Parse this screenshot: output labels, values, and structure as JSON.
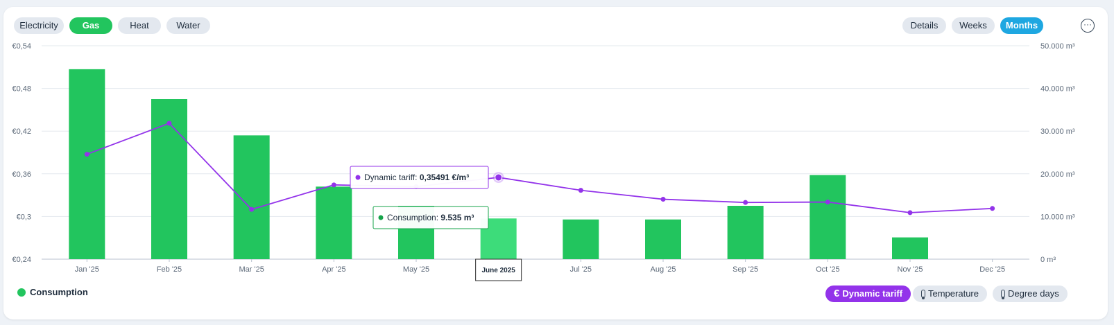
{
  "tabs": {
    "utilities": [
      {
        "label": "Electricity",
        "active": false
      },
      {
        "label": "Gas",
        "active": true
      },
      {
        "label": "Heat",
        "active": false
      },
      {
        "label": "Water",
        "active": false
      }
    ],
    "periods": [
      {
        "label": "Details",
        "active": false
      },
      {
        "label": "Weeks",
        "active": false
      },
      {
        "label": "Months",
        "active": true
      }
    ],
    "more_icon": "ellipsis-icon"
  },
  "legend": {
    "consumption_label": "Consumption"
  },
  "toggles": {
    "dynamic_tariff": {
      "label": "Dynamic tariff",
      "icon": "euro-icon",
      "active": true
    },
    "temperature": {
      "label": "Temperature",
      "icon": "thermometer-icon",
      "active": false
    },
    "degree_days": {
      "label": "Degree days",
      "icon": "thermometer-icon",
      "active": false
    }
  },
  "tooltips": {
    "tariff": {
      "label": "Dynamic tariff",
      "value": "0,35491 €/m³"
    },
    "consumption": {
      "label": "Consumption",
      "value": "9.535 m³"
    },
    "x_label": "June 2025"
  },
  "colors": {
    "consumption": "#22c55e",
    "consumption_hover": "#3ddc7a",
    "tariff": "#9333ea"
  },
  "chart_data": {
    "type": "bar",
    "categories": [
      "Jan '25",
      "Feb '25",
      "Mar '25",
      "Apr '25",
      "May '25",
      "Jun '25",
      "Jul '25",
      "Aug '25",
      "Sep '25",
      "Oct '25",
      "Nov '25",
      "Dec '25"
    ],
    "series": [
      {
        "name": "Consumption",
        "type": "bar",
        "axis": "right",
        "unit": "m³",
        "values": [
          44500,
          37500,
          29000,
          17000,
          12500,
          9535,
          9300,
          9300,
          12500,
          19700,
          5100,
          null
        ]
      },
      {
        "name": "Dynamic tariff",
        "type": "line",
        "axis": "left",
        "unit": "€/m³",
        "values": [
          0.3875,
          0.431,
          0.31,
          0.3444,
          0.342,
          0.35491,
          0.3368,
          0.3242,
          0.3197,
          0.3203,
          0.3054,
          0.3113
        ]
      }
    ],
    "left_axis": {
      "min": 0.24,
      "max": 0.54,
      "ticks": [
        "€0,24",
        "€0,3",
        "€0,36",
        "€0,42",
        "€0,48",
        "€0,54"
      ]
    },
    "right_axis": {
      "min": 0,
      "max": 50000,
      "ticks": [
        "0 m³",
        "10.000 m³",
        "20.000 m³",
        "30.000 m³",
        "40.000 m³",
        "50.000 m³"
      ]
    },
    "highlighted_category": "Jun '25",
    "grid": true
  }
}
